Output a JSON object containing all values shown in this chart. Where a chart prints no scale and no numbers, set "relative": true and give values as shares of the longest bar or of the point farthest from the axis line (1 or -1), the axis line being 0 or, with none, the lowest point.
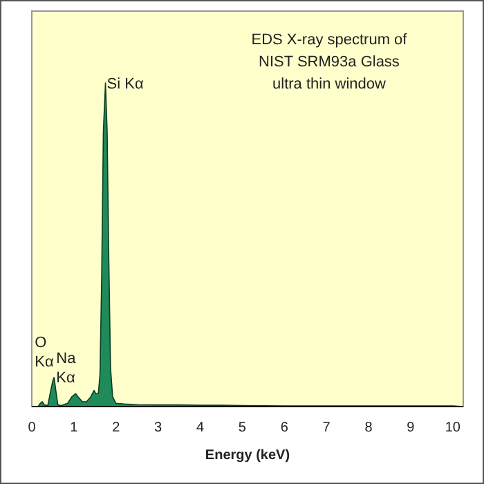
{
  "chart_data": {
    "type": "area",
    "title": "EDS X-ray spectrum of\nNIST SRM93a Glass\nultra thin window",
    "xlabel": "Energy (keV)",
    "relative": true,
    "x": [
      0,
      0.15,
      0.2,
      0.25,
      0.3,
      0.38,
      0.45,
      0.5,
      0.53,
      0.57,
      0.62,
      0.7,
      0.85,
      0.95,
      1.04,
      1.1,
      1.2,
      1.3,
      1.4,
      1.48,
      1.52,
      1.58,
      1.62,
      1.66,
      1.7,
      1.75,
      1.79,
      1.83,
      1.87,
      1.92,
      2.0,
      2.2,
      2.5,
      3,
      3.5,
      4,
      4.5,
      5,
      6,
      7,
      8,
      9,
      10,
      10.25
    ],
    "series": [
      {
        "color": "#1f8a5a",
        "values": [
          0,
          0,
          0.01,
          0.015,
          0.005,
          0.003,
          0.05,
          0.08,
          0.09,
          0.05,
          0.005,
          0.003,
          0.01,
          0.03,
          0.04,
          0.03,
          0.015,
          0.015,
          0.03,
          0.05,
          0.04,
          0.04,
          0.1,
          0.4,
          0.85,
          1,
          0.85,
          0.45,
          0.12,
          0.03,
          0.01,
          0.008,
          0.006,
          0.005,
          0.005,
          0.004,
          0.004,
          0.003,
          0.002,
          0.002,
          0.002,
          0.002,
          0.002,
          0
        ]
      }
    ],
    "xlim": [
      0,
      10.25
    ],
    "xticks": [
      0,
      1,
      2,
      3,
      4,
      5,
      6,
      7,
      8,
      9,
      10
    ],
    "grid": false,
    "annotations": [
      {
        "text": "O\nKα",
        "x": 0.53,
        "y": 0.09
      },
      {
        "text": "Na\nKα",
        "x": 1.04,
        "y": 0.04
      },
      {
        "text": "Si Kα",
        "x": 1.75,
        "y": 1
      }
    ]
  }
}
